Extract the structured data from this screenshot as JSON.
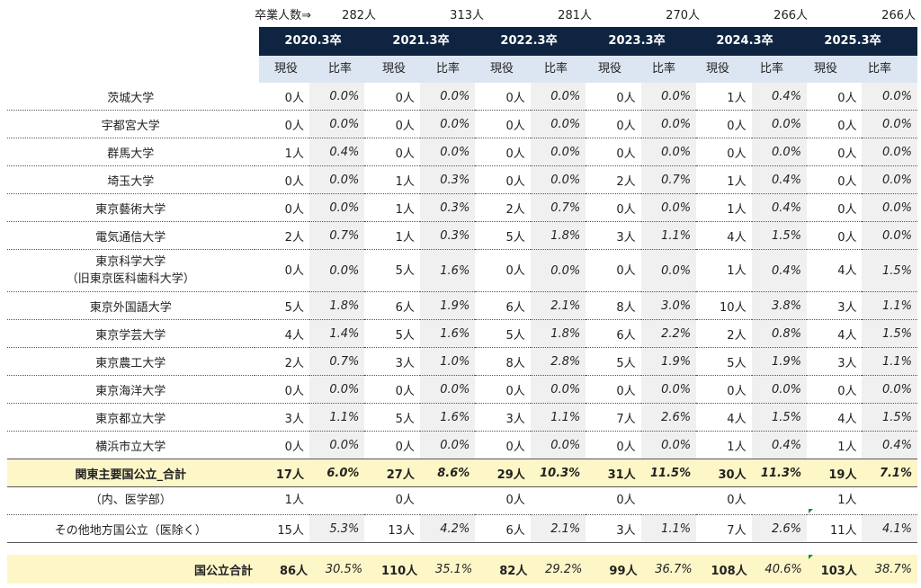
{
  "graduates": {
    "label": "卒業人数⇒",
    "values": [
      "282人",
      "313人",
      "281人",
      "270人",
      "266人",
      "266人"
    ]
  },
  "years": [
    "2020.3卒",
    "2021.3卒",
    "2022.3卒",
    "2023.3卒",
    "2024.3卒",
    "2025.3卒"
  ],
  "subheaders": {
    "current": "現役",
    "ratio": "比率"
  },
  "rows": [
    {
      "name": "茨城大学",
      "cells": [
        [
          "0人",
          "0.0%"
        ],
        [
          "0人",
          "0.0%"
        ],
        [
          "0人",
          "0.0%"
        ],
        [
          "0人",
          "0.0%"
        ],
        [
          "1人",
          "0.4%"
        ],
        [
          "0人",
          "0.0%"
        ]
      ]
    },
    {
      "name": "宇都宮大学",
      "cells": [
        [
          "0人",
          "0.0%"
        ],
        [
          "0人",
          "0.0%"
        ],
        [
          "0人",
          "0.0%"
        ],
        [
          "0人",
          "0.0%"
        ],
        [
          "0人",
          "0.0%"
        ],
        [
          "0人",
          "0.0%"
        ]
      ]
    },
    {
      "name": "群馬大学",
      "cells": [
        [
          "1人",
          "0.4%"
        ],
        [
          "0人",
          "0.0%"
        ],
        [
          "0人",
          "0.0%"
        ],
        [
          "0人",
          "0.0%"
        ],
        [
          "0人",
          "0.0%"
        ],
        [
          "0人",
          "0.0%"
        ]
      ]
    },
    {
      "name": "埼玉大学",
      "cells": [
        [
          "0人",
          "0.0%"
        ],
        [
          "1人",
          "0.3%"
        ],
        [
          "0人",
          "0.0%"
        ],
        [
          "2人",
          "0.7%"
        ],
        [
          "1人",
          "0.4%"
        ],
        [
          "0人",
          "0.0%"
        ]
      ]
    },
    {
      "name": "東京藝術大学",
      "cells": [
        [
          "0人",
          "0.0%"
        ],
        [
          "1人",
          "0.3%"
        ],
        [
          "2人",
          "0.7%"
        ],
        [
          "0人",
          "0.0%"
        ],
        [
          "1人",
          "0.4%"
        ],
        [
          "0人",
          "0.0%"
        ]
      ]
    },
    {
      "name": "電気通信大学",
      "cells": [
        [
          "2人",
          "0.7%"
        ],
        [
          "1人",
          "0.3%"
        ],
        [
          "5人",
          "1.8%"
        ],
        [
          "3人",
          "1.1%"
        ],
        [
          "4人",
          "1.5%"
        ],
        [
          "0人",
          "0.0%"
        ]
      ]
    },
    {
      "name": "東京科学大学",
      "name2": "（旧東京医科歯科大学）",
      "cells": [
        [
          "0人",
          "0.0%"
        ],
        [
          "5人",
          "1.6%"
        ],
        [
          "0人",
          "0.0%"
        ],
        [
          "0人",
          "0.0%"
        ],
        [
          "1人",
          "0.4%"
        ],
        [
          "4人",
          "1.5%"
        ]
      ]
    },
    {
      "name": "東京外国語大学",
      "cells": [
        [
          "5人",
          "1.8%"
        ],
        [
          "6人",
          "1.9%"
        ],
        [
          "6人",
          "2.1%"
        ],
        [
          "8人",
          "3.0%"
        ],
        [
          "10人",
          "3.8%"
        ],
        [
          "3人",
          "1.1%"
        ]
      ]
    },
    {
      "name": "東京学芸大学",
      "cells": [
        [
          "4人",
          "1.4%"
        ],
        [
          "5人",
          "1.6%"
        ],
        [
          "5人",
          "1.8%"
        ],
        [
          "6人",
          "2.2%"
        ],
        [
          "2人",
          "0.8%"
        ],
        [
          "4人",
          "1.5%"
        ]
      ]
    },
    {
      "name": "東京農工大学",
      "cells": [
        [
          "2人",
          "0.7%"
        ],
        [
          "3人",
          "1.0%"
        ],
        [
          "8人",
          "2.8%"
        ],
        [
          "5人",
          "1.9%"
        ],
        [
          "5人",
          "1.9%"
        ],
        [
          "3人",
          "1.1%"
        ]
      ]
    },
    {
      "name": "東京海洋大学",
      "cells": [
        [
          "0人",
          "0.0%"
        ],
        [
          "0人",
          "0.0%"
        ],
        [
          "0人",
          "0.0%"
        ],
        [
          "0人",
          "0.0%"
        ],
        [
          "0人",
          "0.0%"
        ],
        [
          "0人",
          "0.0%"
        ]
      ]
    },
    {
      "name": "東京都立大学",
      "cells": [
        [
          "3人",
          "1.1%"
        ],
        [
          "5人",
          "1.6%"
        ],
        [
          "3人",
          "1.1%"
        ],
        [
          "7人",
          "2.6%"
        ],
        [
          "4人",
          "1.5%"
        ],
        [
          "4人",
          "1.5%"
        ]
      ]
    },
    {
      "name": "横浜市立大学",
      "cells": [
        [
          "0人",
          "0.0%"
        ],
        [
          "0人",
          "0.0%"
        ],
        [
          "0人",
          "0.0%"
        ],
        [
          "0人",
          "0.0%"
        ],
        [
          "1人",
          "0.4%"
        ],
        [
          "1人",
          "0.4%"
        ]
      ]
    }
  ],
  "total": {
    "name": "関東主要国公立_合計",
    "cells": [
      [
        "17人",
        "6.0%"
      ],
      [
        "27人",
        "8.6%"
      ],
      [
        "29人",
        "10.3%"
      ],
      [
        "31人",
        "11.5%"
      ],
      [
        "30人",
        "11.3%"
      ],
      [
        "19人",
        "7.1%"
      ]
    ]
  },
  "medical": {
    "name": "（内、医学部）",
    "cells": [
      [
        "1人",
        ""
      ],
      [
        "0人",
        ""
      ],
      [
        "0人",
        ""
      ],
      [
        "0人",
        ""
      ],
      [
        "0人",
        ""
      ],
      [
        "1人",
        ""
      ]
    ]
  },
  "other": {
    "name": "その他地方国公立（医除く）",
    "cells": [
      [
        "15人",
        "5.3%"
      ],
      [
        "13人",
        "4.2%"
      ],
      [
        "6人",
        "2.1%"
      ],
      [
        "3人",
        "1.1%"
      ],
      [
        "7人",
        "2.6%"
      ],
      [
        "11人",
        "4.1%"
      ]
    ]
  },
  "grand": {
    "name": "国公立合計",
    "cells": [
      [
        "86人",
        "30.5%"
      ],
      [
        "110人",
        "35.1%"
      ],
      [
        "82人",
        "29.2%"
      ],
      [
        "99人",
        "36.7%"
      ],
      [
        "108人",
        "40.6%"
      ],
      [
        "103人",
        "38.7%"
      ]
    ]
  }
}
